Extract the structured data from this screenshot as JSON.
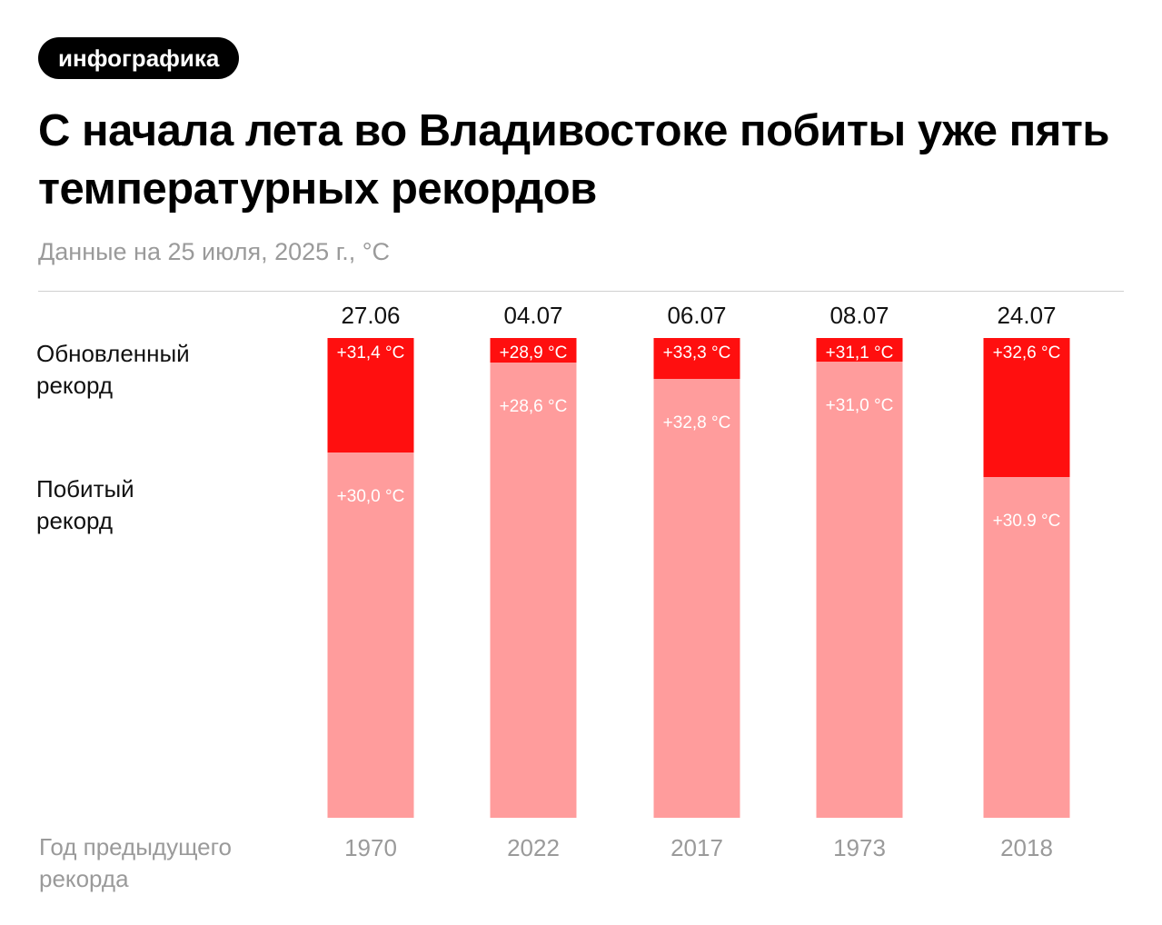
{
  "tag": "инфографика",
  "title": "С начала лета во Владивостоке побиты уже пять температурных рекордов",
  "subtitle": "Данные на 25 июля, 2025 г., °С",
  "labels": {
    "new_record": "Обновленный\nрекорд",
    "old_record": "Побитый\nрекорд",
    "prev_year": "Год предыдущего\nрекорда"
  },
  "colors": {
    "new_record": "#ff0f0f",
    "old_record": "#ff9c9c",
    "text_on_bar": "#ffffff"
  },
  "chart_data": {
    "type": "bar",
    "categories": [
      "27.06",
      "04.07",
      "06.07",
      "08.07",
      "24.07"
    ],
    "series": [
      {
        "name": "Обновленный рекорд",
        "values": [
          31.4,
          28.9,
          33.3,
          31.1,
          32.6
        ],
        "labels": [
          "+31,4 °C",
          "+28,9 °C",
          "+33,3 °C",
          "+31,1 °C",
          "+32,6 °C"
        ]
      },
      {
        "name": "Побитый рекорд",
        "values": [
          30.0,
          28.6,
          32.8,
          31.0,
          30.9
        ],
        "labels": [
          "+30,0 °C",
          "+28,6 °C",
          "+32,8 °C",
          "+31,0 °C",
          "+30.9 °C"
        ]
      }
    ],
    "previous_record_years": [
      "1970",
      "2022",
      "2017",
      "1973",
      "2018"
    ]
  }
}
